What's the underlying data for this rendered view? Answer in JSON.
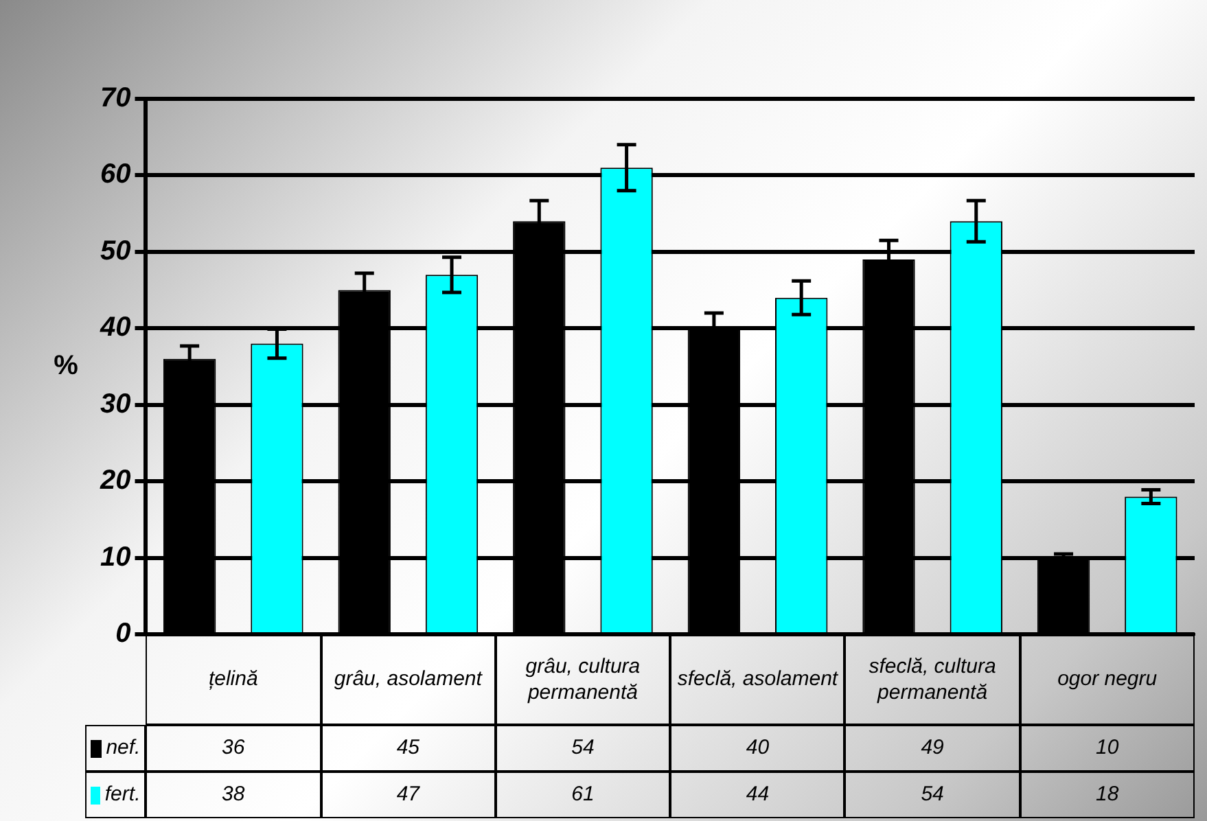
{
  "chart_data": {
    "type": "bar",
    "ylabel": "%",
    "categories": [
      "țelină",
      "grâu, asolament",
      "grâu, cultura permanentă",
      "sfeclă, asolament",
      "sfeclă, cultura permanentă",
      "ogor negru"
    ],
    "series": [
      {
        "name": "nef.",
        "color": "#000000",
        "values": [
          36,
          45,
          54,
          40,
          49,
          10
        ],
        "errors": [
          1.7,
          2.2,
          2.7,
          2,
          2.5,
          0.5
        ]
      },
      {
        "name": "fert.",
        "color": "#00ffff",
        "values": [
          38,
          47,
          61,
          44,
          54,
          18
        ],
        "errors": [
          1.9,
          2.3,
          3,
          2.2,
          2.7,
          0.9
        ]
      }
    ],
    "ylim": [
      0,
      70
    ],
    "yticks": [
      0,
      10,
      20,
      30,
      40,
      50,
      60,
      70
    ],
    "grid": "y",
    "data_labels": true,
    "legend": "bottom left"
  }
}
